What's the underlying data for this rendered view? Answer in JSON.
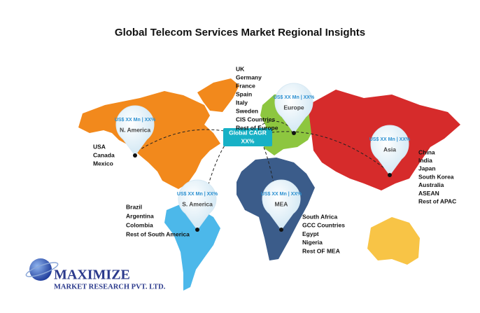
{
  "title": "Global Telecom Services Market Regional Insights",
  "cagr": [
    "Global CAGR",
    "XX%"
  ],
  "regions": [
    {
      "name": "N. America",
      "value": "US$ XX Mn | XX%",
      "countries": [
        "USA",
        "Canada",
        "Mexico"
      ]
    },
    {
      "name": "Europe",
      "value": "US$ XX Mn | XX%",
      "countries": [
        "UK",
        "Germany",
        "France",
        "Spain",
        "Italy",
        "Sweden",
        "CIS Countries",
        "Rest of Europe"
      ]
    },
    {
      "name": "Asia",
      "value": "US$ XX Mn | XX%",
      "countries": [
        "China",
        "India",
        "Japan",
        "South Korea",
        "Australia",
        "ASEAN",
        "Rest of APAC"
      ]
    },
    {
      "name": "S. America",
      "value": "US$ XX Mn | XX%",
      "countries": [
        "Brazil",
        "Argentina",
        "Colombia",
        "Rest of South America"
      ]
    },
    {
      "name": "MEA",
      "value": "US$ XX Mn | XX%",
      "countries": [
        "South Africa",
        "GCC Countries",
        "Egypt",
        "Nigeria",
        "Rest OF MEA"
      ]
    }
  ],
  "logo": {
    "name": "MAXIMIZE",
    "subtitle": "MARKET RESEARCH PVT. LTD."
  }
}
